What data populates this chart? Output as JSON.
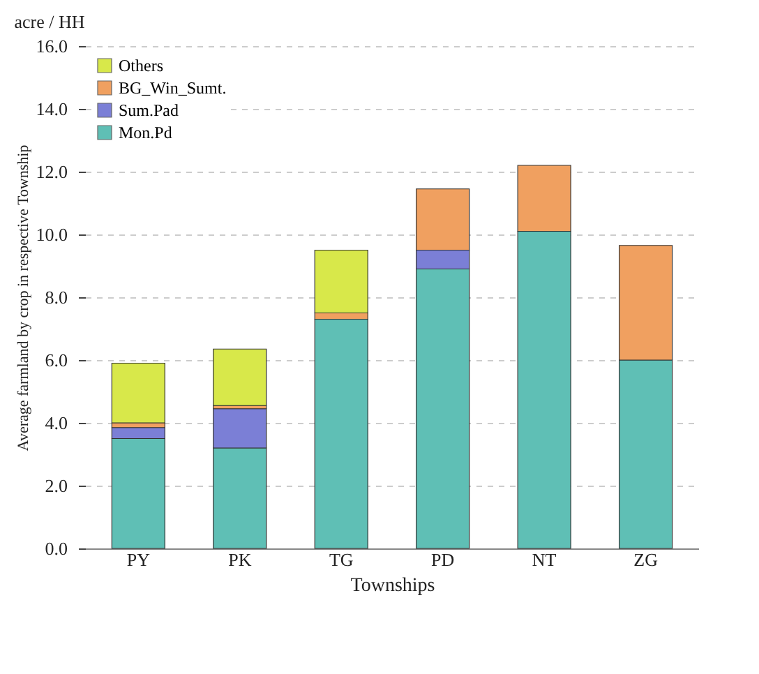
{
  "chart_data": {
    "type": "bar",
    "stacked": true,
    "xlabel": "Townships",
    "ylabel": "Average farmland by crop in respective Township",
    "annotations": [
      "acre / HH"
    ],
    "categories": [
      "PY",
      "PK",
      "TG",
      "PD",
      "NT",
      "ZG"
    ],
    "series": [
      {
        "name": "Mon.Pd",
        "color": "#5fbfb5",
        "values": [
          3.5,
          3.2,
          7.3,
          8.9,
          10.1,
          6.0
        ]
      },
      {
        "name": "Sum.Pad",
        "color": "#7b7fd6",
        "values": [
          0.35,
          1.25,
          null,
          0.6,
          null,
          null
        ]
      },
      {
        "name": "BG_Win_Sumt.",
        "color": "#f0a060",
        "values": [
          0.15,
          0.1,
          0.2,
          1.95,
          2.1,
          3.65
        ]
      },
      {
        "name": "Others",
        "color": "#d8e84a",
        "values": [
          1.9,
          1.8,
          2.0,
          null,
          null,
          null
        ]
      }
    ],
    "ylim": [
      0,
      16
    ],
    "yticks": [
      {
        "value": 0,
        "label": "0.0"
      },
      {
        "value": 2,
        "label": "2.0"
      },
      {
        "value": 4,
        "label": "4.0"
      },
      {
        "value": 6,
        "label": "6.0"
      },
      {
        "value": 8,
        "label": "8.0"
      },
      {
        "value": 10,
        "label": "10.0"
      },
      {
        "value": 12,
        "label": "12.0"
      },
      {
        "value": 14,
        "label": "14.0"
      },
      {
        "value": 16,
        "label": "16.0"
      }
    ],
    "grid": "y",
    "legend": "top left"
  }
}
